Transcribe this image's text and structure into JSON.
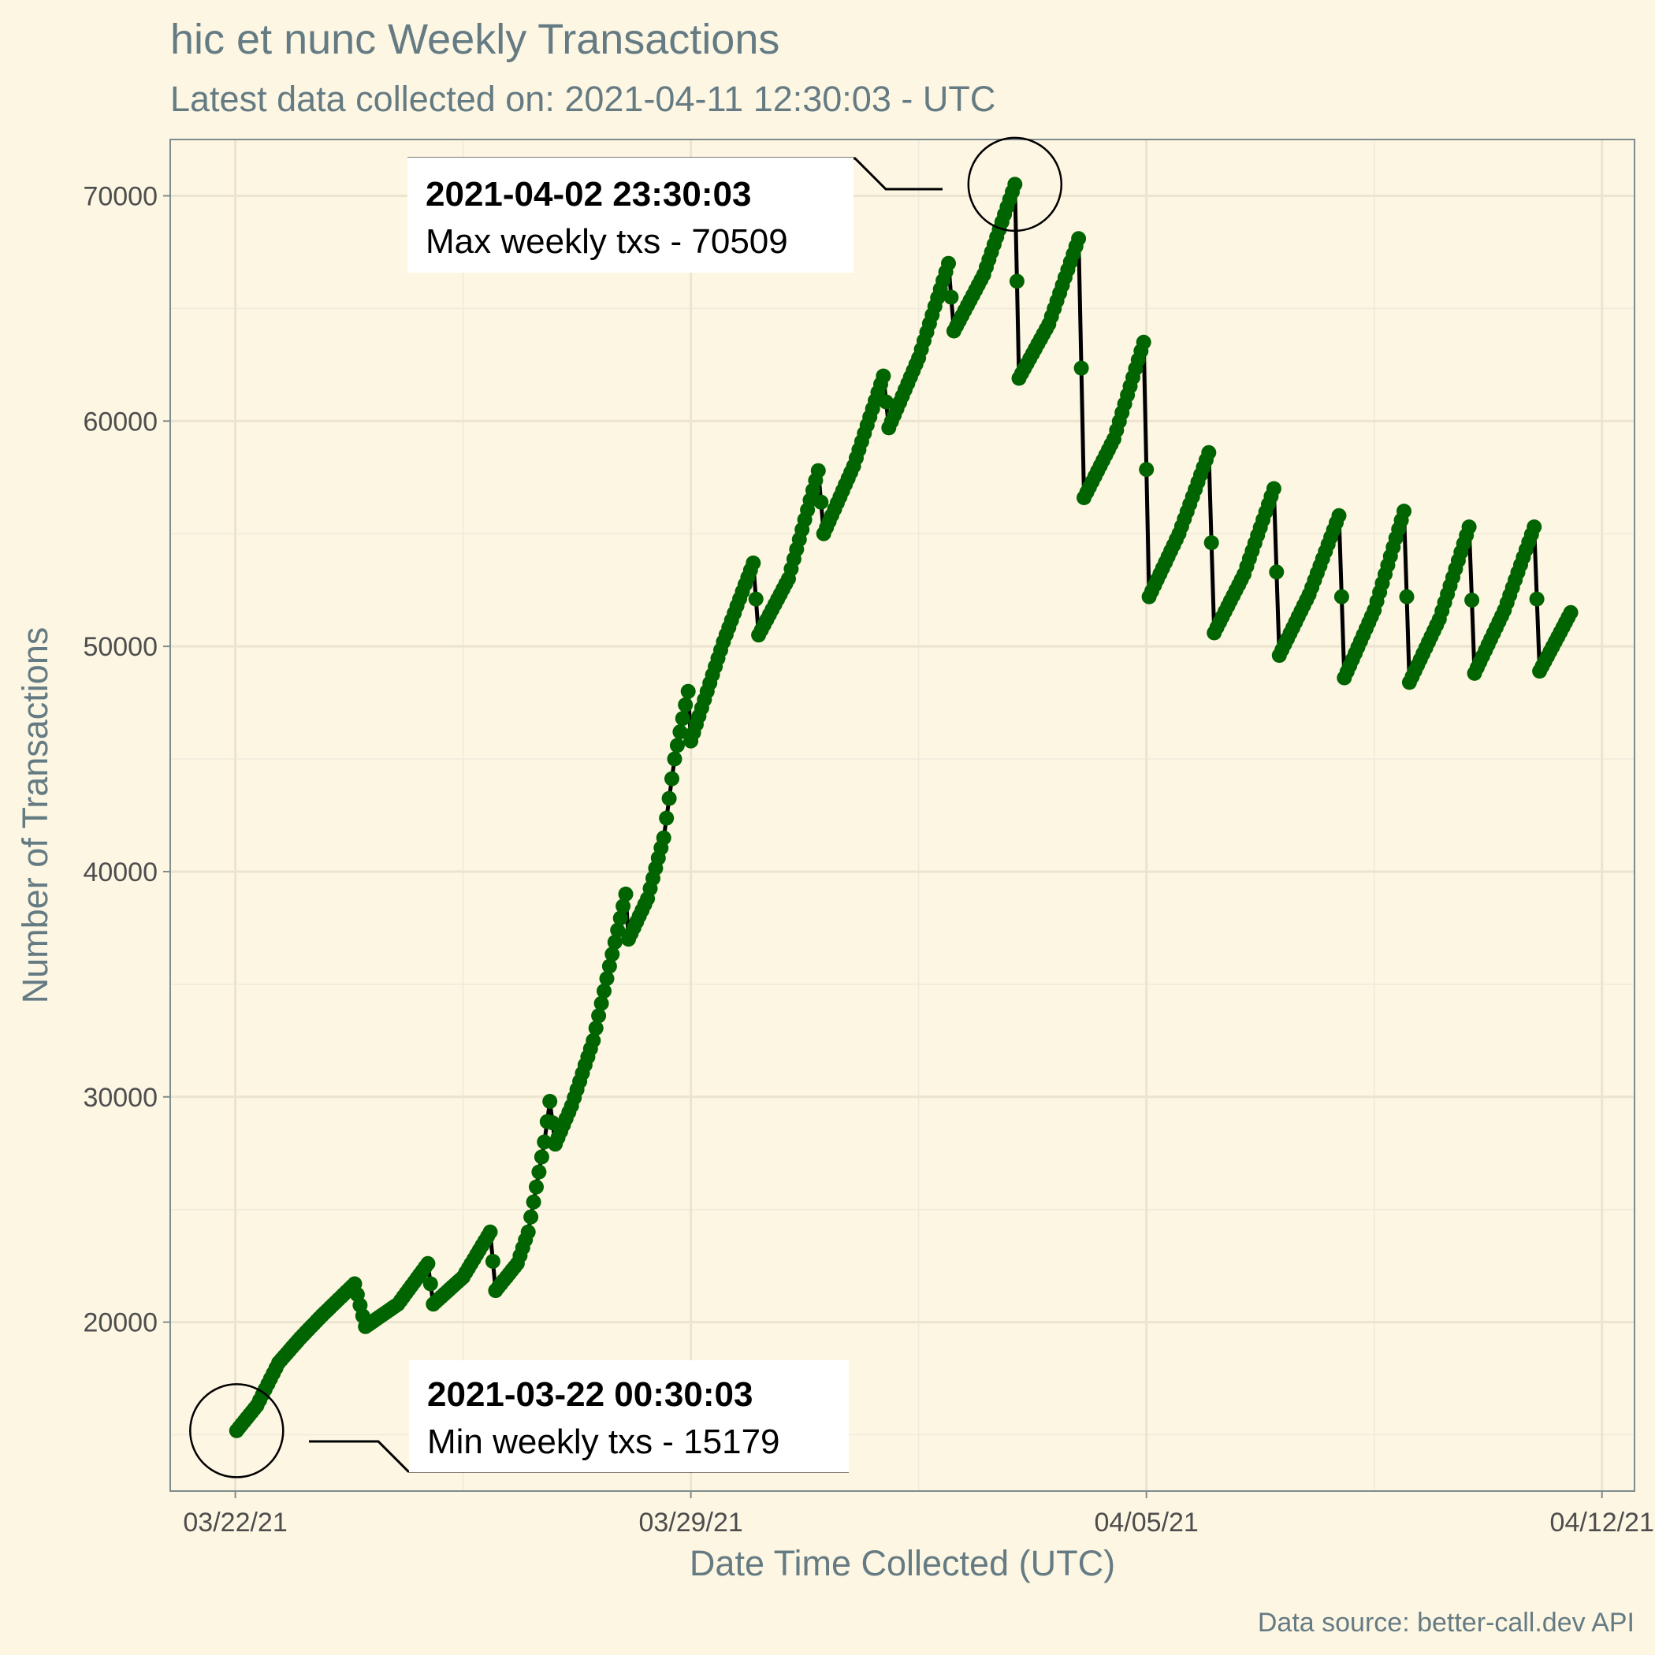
{
  "chart_data": {
    "type": "line",
    "title": "hic et nunc Weekly Transactions",
    "subtitle": "Latest data collected on: 2021-04-11 12:30:03  - UTC",
    "xlabel": "Date Time Collected (UTC)",
    "ylabel": "Number of Transactions",
    "caption": "Data source: better-call.dev API",
    "x_ticks": [
      "03/22/21",
      "03/29/21",
      "04/05/21",
      "04/12/21"
    ],
    "y_ticks": [
      20000,
      30000,
      40000,
      50000,
      60000,
      70000
    ],
    "xlim": [
      "2021-03-21 00:00",
      "2021-04-12 12:00"
    ],
    "ylim": [
      12500,
      72500
    ],
    "grid": true,
    "line_color": "#000000",
    "point_color": "#006400",
    "background": "#fdf6e3",
    "series": [
      {
        "values": [
          [
            "2021-03-22 00:30",
            15179
          ],
          [
            "2021-03-22 08:00",
            16300
          ],
          [
            "2021-03-22 16:00",
            18200
          ],
          [
            "2021-03-23 00:00",
            19300
          ],
          [
            "2021-03-23 08:00",
            20300
          ],
          [
            "2021-03-23 20:00",
            21700
          ],
          [
            "2021-03-24 00:00",
            19800
          ],
          [
            "2021-03-24 12:00",
            20800
          ],
          [
            "2021-03-24 23:00",
            22600
          ],
          [
            "2021-03-25 01:00",
            20800
          ],
          [
            "2021-03-25 12:00",
            22000
          ],
          [
            "2021-03-25 22:00",
            24000
          ],
          [
            "2021-03-26 00:00",
            21400
          ],
          [
            "2021-03-26 08:00",
            22600
          ],
          [
            "2021-03-26 12:00",
            24000
          ],
          [
            "2021-03-26 18:00",
            28000
          ],
          [
            "2021-03-26 20:00",
            29800
          ],
          [
            "2021-03-26 22:00",
            27900
          ],
          [
            "2021-03-27 04:00",
            29600
          ],
          [
            "2021-03-27 12:00",
            32500
          ],
          [
            "2021-03-27 18:00",
            35800
          ],
          [
            "2021-03-28 00:00",
            39000
          ],
          [
            "2021-03-28 01:00",
            37000
          ],
          [
            "2021-03-28 08:00",
            38800
          ],
          [
            "2021-03-28 14:00",
            41500
          ],
          [
            "2021-03-28 18:00",
            45000
          ],
          [
            "2021-03-28 23:00",
            48000
          ],
          [
            "2021-03-29 00:00",
            45800
          ],
          [
            "2021-03-29 12:00",
            50200
          ],
          [
            "2021-03-29 23:00",
            53700
          ],
          [
            "2021-03-30 01:00",
            50500
          ],
          [
            "2021-03-30 12:00",
            53000
          ],
          [
            "2021-03-30 23:00",
            57800
          ],
          [
            "2021-03-31 01:00",
            55000
          ],
          [
            "2021-03-31 12:00",
            58000
          ],
          [
            "2021-03-31 23:00",
            62000
          ],
          [
            "2021-04-01 01:00",
            59700
          ],
          [
            "2021-04-01 12:00",
            62800
          ],
          [
            "2021-04-01 23:00",
            67000
          ],
          [
            "2021-04-02 01:00",
            64000
          ],
          [
            "2021-04-02 12:00",
            66500
          ],
          [
            "2021-04-02 23:30",
            70509
          ],
          [
            "2021-04-03 01:00",
            61900
          ],
          [
            "2021-04-03 12:00",
            64300
          ],
          [
            "2021-04-03 23:00",
            68100
          ],
          [
            "2021-04-04 01:00",
            56600
          ],
          [
            "2021-04-04 12:00",
            59200
          ],
          [
            "2021-04-04 23:00",
            63500
          ],
          [
            "2021-04-05 01:00",
            52200
          ],
          [
            "2021-04-05 12:00",
            55000
          ],
          [
            "2021-04-05 23:00",
            58600
          ],
          [
            "2021-04-06 01:00",
            50600
          ],
          [
            "2021-04-06 12:00",
            53200
          ],
          [
            "2021-04-06 23:00",
            57000
          ],
          [
            "2021-04-07 01:00",
            49600
          ],
          [
            "2021-04-07 12:00",
            52300
          ],
          [
            "2021-04-07 23:00",
            55800
          ],
          [
            "2021-04-08 01:00",
            48600
          ],
          [
            "2021-04-08 12:00",
            51600
          ],
          [
            "2021-04-08 23:00",
            56000
          ],
          [
            "2021-04-09 01:00",
            48400
          ],
          [
            "2021-04-09 12:00",
            51200
          ],
          [
            "2021-04-09 23:00",
            55300
          ],
          [
            "2021-04-10 01:00",
            48800
          ],
          [
            "2021-04-10 12:00",
            51600
          ],
          [
            "2021-04-10 23:00",
            55300
          ],
          [
            "2021-04-11 01:00",
            48900
          ],
          [
            "2021-04-11 12:30",
            51500
          ]
        ]
      }
    ],
    "annotations": {
      "max": {
        "time": "2021-04-02 23:30:03",
        "value": 70509,
        "bold": "2021-04-02 23:30:03",
        "text": "Max weekly txs - 70509"
      },
      "min": {
        "time": "2021-03-22 00:30:03",
        "value": 15179,
        "bold": "2021-03-22 00:30:03",
        "text": "Min weekly txs - 15179"
      }
    }
  }
}
